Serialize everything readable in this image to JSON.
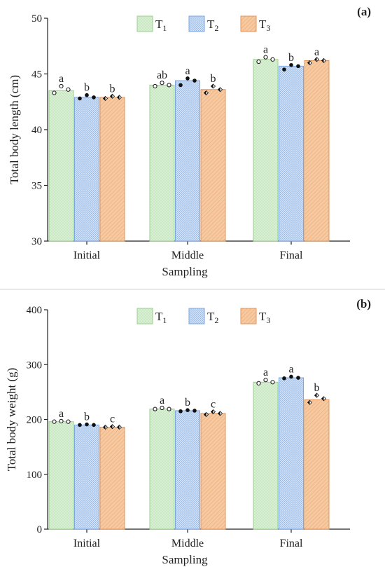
{
  "colors": {
    "T1": "#d9f0d4",
    "T1_edge": "#9bcf8e",
    "T2": "#cfe0f7",
    "T2_edge": "#7ba6e0",
    "T3": "#f7c9a0",
    "T3_edge": "#e0955a",
    "axis": "#222222"
  },
  "chart_data": [
    {
      "type": "bar",
      "panel_label": "(a)",
      "xlabel": "Sampling",
      "ylabel": "Total body length (cm)",
      "categories": [
        "Initial",
        "Middle",
        "Final"
      ],
      "ylim": [
        30,
        50
      ],
      "yticks": [
        "30",
        "35",
        "40",
        "45",
        "50"
      ],
      "legend_placement": "top-center",
      "series": [
        {
          "key": "T1",
          "name": "T",
          "sub": "1",
          "marker": "open-circle",
          "values": [
            43.5,
            44.0,
            46.3
          ],
          "points": [
            [
              43.3,
              43.9,
              43.6
            ],
            [
              43.9,
              44.2,
              44.0
            ],
            [
              46.1,
              46.5,
              46.3
            ]
          ],
          "letters": [
            "a",
            "ab",
            "a"
          ]
        },
        {
          "key": "T2",
          "name": "T",
          "sub": "2",
          "marker": "filled-circle",
          "values": [
            42.9,
            44.4,
            45.7
          ],
          "points": [
            [
              42.8,
              43.1,
              42.9
            ],
            [
              44.0,
              44.6,
              44.4
            ],
            [
              45.4,
              45.8,
              45.7
            ]
          ],
          "letters": [
            "b",
            "a",
            "b"
          ]
        },
        {
          "key": "T3",
          "name": "T",
          "sub": "3",
          "marker": "half-diamond",
          "values": [
            42.9,
            43.6,
            46.2
          ],
          "points": [
            [
              42.8,
              43.0,
              42.9
            ],
            [
              43.3,
              43.9,
              43.6
            ],
            [
              46.0,
              46.3,
              46.2
            ]
          ],
          "letters": [
            "b",
            "b",
            "a"
          ]
        }
      ]
    },
    {
      "type": "bar",
      "panel_label": "(b)",
      "xlabel": "Sampling",
      "ylabel": "Total body weight (g)",
      "categories": [
        "Initial",
        "Middle",
        "Final"
      ],
      "ylim": [
        0,
        400
      ],
      "yticks": [
        "0",
        "100",
        "200",
        "300",
        "400"
      ],
      "legend_placement": "top-center",
      "series": [
        {
          "key": "T1",
          "name": "T",
          "sub": "1",
          "marker": "open-circle",
          "values": [
            196,
            219,
            268
          ],
          "points": [
            [
              196,
              197,
              196
            ],
            [
              219,
              221,
              219
            ],
            [
              266,
              272,
              268
            ]
          ],
          "letters": [
            "a",
            "a",
            "a"
          ]
        },
        {
          "key": "T2",
          "name": "T",
          "sub": "2",
          "marker": "filled-circle",
          "values": [
            190,
            216,
            276
          ],
          "points": [
            [
              190,
              191,
              190
            ],
            [
              215,
              217,
              216
            ],
            [
              275,
              278,
              276
            ]
          ],
          "letters": [
            "b",
            "b",
            "a"
          ]
        },
        {
          "key": "T3",
          "name": "T",
          "sub": "3",
          "marker": "half-diamond",
          "values": [
            186,
            211,
            236
          ],
          "points": [
            [
              186,
              187,
              186
            ],
            [
              209,
              214,
              211
            ],
            [
              231,
              244,
              238
            ]
          ],
          "letters": [
            "c",
            "c",
            "b"
          ]
        }
      ]
    }
  ]
}
